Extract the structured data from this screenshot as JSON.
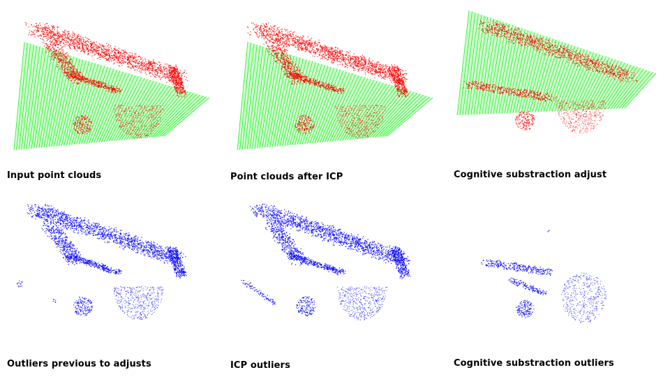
{
  "colors": {
    "target_cloud": "#ff0000",
    "source_cloud": "#00ee00",
    "outliers": "#0000ff",
    "background": "#ffffff"
  },
  "panels": [
    {
      "caption": "Input point clouds",
      "kind": "pair"
    },
    {
      "caption": "Point clouds after ICP",
      "kind": "pair"
    },
    {
      "caption": "Cognitive substraction adjust",
      "kind": "pair"
    },
    {
      "caption": "Outliers previous to adjusts",
      "kind": "outliers"
    },
    {
      "caption": "ICP outliers",
      "kind": "outliers"
    },
    {
      "caption": "Cognitive substraction outliers",
      "kind": "outliers"
    }
  ]
}
